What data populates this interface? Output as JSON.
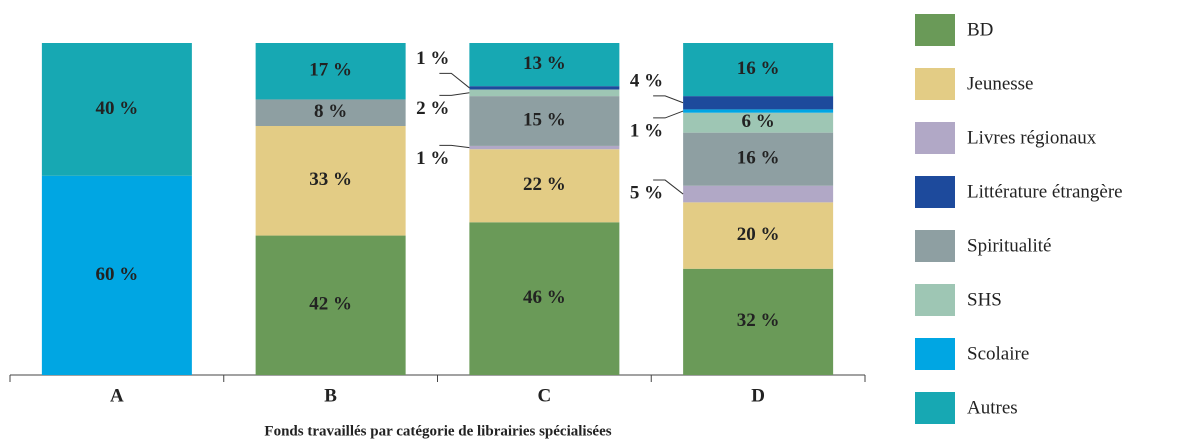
{
  "chart_data": {
    "type": "stacked_bar",
    "x_label": "Fonds travaillés par catégorie de librairies spécialisées",
    "categories": [
      "A",
      "B",
      "C",
      "D"
    ],
    "ylim": [
      0,
      100
    ],
    "stack_order": [
      "BD",
      "Jeunesse",
      "Livres régionaux",
      "Spiritualité",
      "SHS",
      "Scolaire",
      "Littérature étrangère",
      "Autres"
    ],
    "series": [
      {
        "name": "BD",
        "color": "#6a9a58",
        "values": [
          null,
          42,
          46,
          32
        ],
        "value_labels": [
          null,
          "42 %",
          "46 %",
          "32 %"
        ]
      },
      {
        "name": "Jeunesse",
        "color": "#e3cc85",
        "values": [
          null,
          33,
          22,
          20
        ],
        "value_labels": [
          null,
          "33 %",
          "22 %",
          "20 %"
        ]
      },
      {
        "name": "Livres régionaux",
        "color": "#b1a8c6",
        "values": [
          null,
          null,
          1,
          5
        ],
        "value_labels": [
          null,
          null,
          "1 %",
          "5 %"
        ]
      },
      {
        "name": "Littérature étrangère",
        "color": "#1d4a9c",
        "values": [
          null,
          null,
          1,
          4
        ],
        "value_labels": [
          null,
          null,
          "1 %",
          "4 %"
        ]
      },
      {
        "name": "Spiritualité",
        "color": "#8e9fa2",
        "values": [
          null,
          8,
          15,
          16
        ],
        "value_labels": [
          null,
          "8 %",
          "15 %",
          "16 %"
        ]
      },
      {
        "name": "SHS",
        "color": "#9ec6b4",
        "values": [
          null,
          null,
          2,
          6
        ],
        "value_labels": [
          null,
          null,
          "2 %",
          "6 %"
        ]
      },
      {
        "name": "Scolaire",
        "color": "#00a6e3",
        "values": [
          60,
          null,
          null,
          1
        ],
        "value_labels": [
          "60 %",
          null,
          null,
          "1 %"
        ]
      },
      {
        "name": "Autres",
        "color": "#17a8b3",
        "values": [
          40,
          17,
          13,
          16
        ],
        "value_labels": [
          "40 %",
          "17 %",
          "13 %",
          "16 %"
        ]
      }
    ]
  }
}
